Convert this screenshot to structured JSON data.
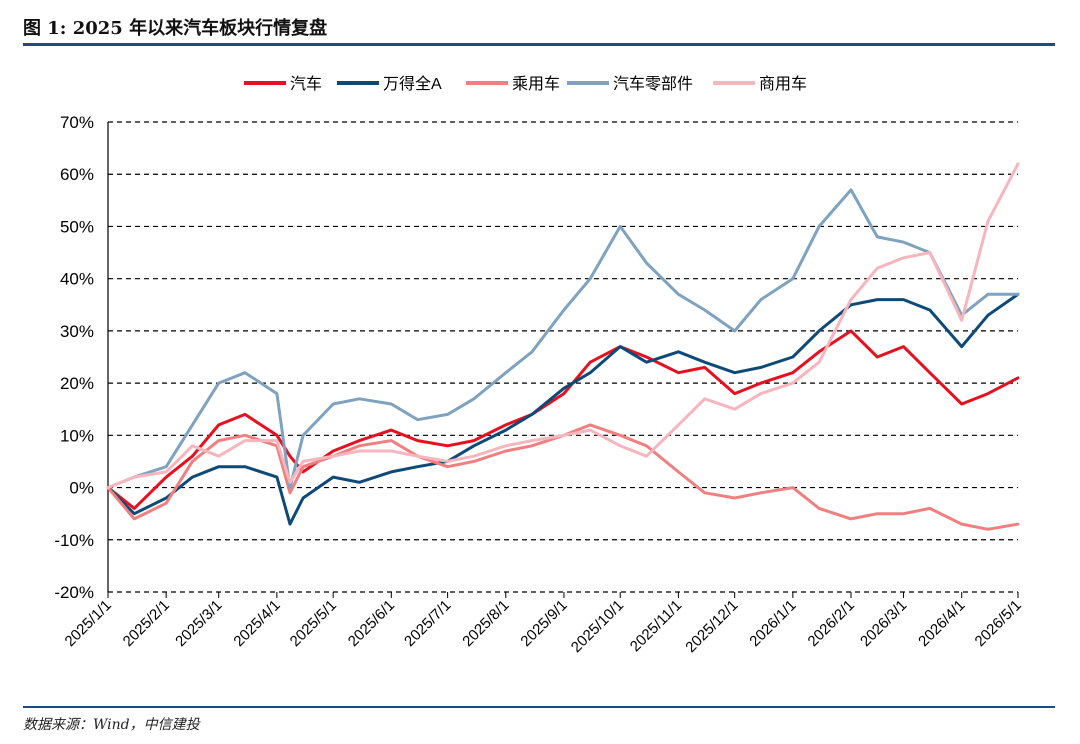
{
  "header": {
    "title": "图 1: 2025 年以来汽车板块行情复盘"
  },
  "footer": {
    "source": "数据来源：Wind，中信建投"
  },
  "colors": {
    "auto": "#e8101e",
    "wind_a": "#0e4a78",
    "passenger": "#f08080",
    "parts": "#7fa2bf",
    "commercial": "#f7b6bd",
    "rule": "#1b4e80",
    "grid": "#000000"
  },
  "chart_data": {
    "type": "line",
    "title": "",
    "xlabel": "",
    "ylabel": "",
    "ylim": [
      -20,
      70
    ],
    "yticks": [
      "70%",
      "60%",
      "50%",
      "40%",
      "30%",
      "20%",
      "10%",
      "0%",
      "-10%",
      "-20%"
    ],
    "ytick_values": [
      70,
      60,
      50,
      40,
      30,
      20,
      10,
      0,
      -10,
      -20
    ],
    "xticks": [
      "2025/1/1",
      "2025/2/1",
      "2025/3/1",
      "2025/4/1",
      "2025/5/1",
      "2025/6/1",
      "2025/7/1",
      "2025/8/1",
      "2025/9/1",
      "2025/10/1",
      "2025/11/1",
      "2025/12/1",
      "2026/1/1",
      "2026/2/1",
      "2026/3/1",
      "2026/4/1",
      "2026/5/1"
    ],
    "grid": "horizontal dashed",
    "legend_position": "top",
    "x": [
      "2025/1/1",
      "2025/1/15",
      "2025/2/1",
      "2025/2/15",
      "2025/3/1",
      "2025/3/15",
      "2025/4/1",
      "2025/4/8",
      "2025/4/15",
      "2025/5/1",
      "2025/5/15",
      "2025/6/1",
      "2025/6/15",
      "2025/7/1",
      "2025/7/15",
      "2025/8/1",
      "2025/8/15",
      "2025/9/1",
      "2025/9/15",
      "2025/10/1",
      "2025/10/15",
      "2025/11/1",
      "2025/11/15",
      "2025/12/1",
      "2025/12/15",
      "2026/1/1",
      "2026/1/15",
      "2026/2/1",
      "2026/2/15",
      "2026/3/1",
      "2026/3/15",
      "2026/4/1",
      "2026/4/15",
      "2026/5/1"
    ],
    "series": [
      {
        "name": "汽车",
        "color_key": "auto",
        "values": [
          0,
          -4,
          2,
          6,
          12,
          14,
          10,
          6,
          3,
          7,
          9,
          11,
          9,
          8,
          9,
          12,
          14,
          18,
          24,
          27,
          25,
          22,
          23,
          18,
          20,
          22,
          26,
          30,
          25,
          27,
          22,
          16,
          18,
          21
        ]
      },
      {
        "name": "万得全A",
        "color_key": "wind_a",
        "values": [
          0,
          -5,
          -2,
          2,
          4,
          4,
          2,
          -7,
          -2,
          2,
          1,
          3,
          4,
          5,
          8,
          11,
          14,
          19,
          22,
          27,
          24,
          26,
          24,
          22,
          23,
          25,
          30,
          35,
          36,
          36,
          34,
          27,
          33,
          37
        ]
      },
      {
        "name": "乘用车",
        "color_key": "passenger",
        "values": [
          0,
          -6,
          -3,
          5,
          9,
          10,
          8,
          -1,
          4,
          6,
          8,
          9,
          6,
          4,
          5,
          7,
          8,
          10,
          12,
          10,
          8,
          3,
          -1,
          -2,
          -1,
          0,
          -4,
          -6,
          -5,
          -5,
          -4,
          -7,
          -8,
          -7
        ]
      },
      {
        "name": "汽车零部件",
        "color_key": "parts",
        "values": [
          0,
          2,
          4,
          12,
          20,
          22,
          18,
          0,
          10,
          16,
          17,
          16,
          13,
          14,
          17,
          22,
          26,
          34,
          40,
          50,
          43,
          37,
          34,
          30,
          36,
          40,
          50,
          57,
          48,
          47,
          45,
          33,
          37,
          37
        ]
      },
      {
        "name": "商用车",
        "color_key": "commercial",
        "values": [
          0,
          2,
          3,
          8,
          6,
          9,
          9,
          1,
          5,
          6,
          7,
          7,
          6,
          5,
          6,
          8,
          9,
          10,
          11,
          8,
          6,
          12,
          17,
          15,
          18,
          20,
          24,
          36,
          42,
          44,
          45,
          32,
          51,
          62
        ]
      }
    ]
  }
}
